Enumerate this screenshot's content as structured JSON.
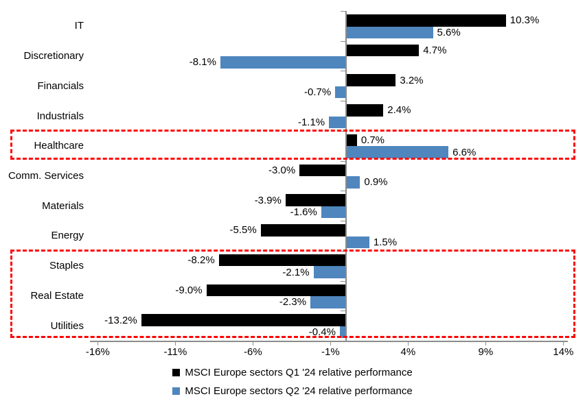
{
  "chart_data": {
    "type": "bar",
    "orientation": "horizontal",
    "title": "",
    "categories": [
      "IT",
      "Discretionary",
      "Financials",
      "Industrials",
      "Healthcare",
      "Comm. Services",
      "Materials",
      "Energy",
      "Staples",
      "Real Estate",
      "Utilities"
    ],
    "series": [
      {
        "name": "MSCI Europe sectors Q1 '24 relative performance",
        "color": "#000000",
        "values": [
          10.3,
          4.7,
          3.2,
          2.4,
          0.7,
          -3.0,
          -3.9,
          -5.5,
          -8.2,
          -9.0,
          -13.2
        ],
        "labels": [
          "10.3%",
          "4.7%",
          "3.2%",
          "2.4%",
          "0.7%",
          "-3.0%",
          "-3.9%",
          "-5.5%",
          "-8.2%",
          "-9.0%",
          "-13.2%"
        ]
      },
      {
        "name": "MSCI Europe sectors Q2 '24 relative performance",
        "color": "#4F86BE",
        "values": [
          5.6,
          -8.1,
          -0.7,
          -1.1,
          6.6,
          0.9,
          -1.6,
          1.5,
          -2.1,
          -2.3,
          -0.4
        ],
        "labels": [
          "5.6%",
          "-8.1%",
          "-0.7%",
          "-1.1%",
          "6.6%",
          "0.9%",
          "-1.6%",
          "1.5%",
          "-2.1%",
          "-2.3%",
          "-0.4%"
        ]
      }
    ],
    "x_ticks": [
      {
        "value": -16,
        "label": "-16%"
      },
      {
        "value": -11,
        "label": "-11%"
      },
      {
        "value": -6,
        "label": "-6%"
      },
      {
        "value": -1,
        "label": "-1%"
      },
      {
        "value": 4,
        "label": "4%"
      },
      {
        "value": 9,
        "label": "9%"
      },
      {
        "value": 14,
        "label": "14%"
      }
    ],
    "xlim": [
      -16.5,
      14.3
    ],
    "grid": false,
    "axis_color": "#8c8c8c",
    "text_color": "#000000",
    "legend_position": "bottom",
    "highlight_boxes": [
      {
        "start_category": "Healthcare",
        "end_category": "Healthcare",
        "color": "#FF0000",
        "style": "dashed"
      },
      {
        "start_category": "Staples",
        "end_category": "Utilities",
        "color": "#FF0000",
        "style": "dashed"
      }
    ]
  }
}
